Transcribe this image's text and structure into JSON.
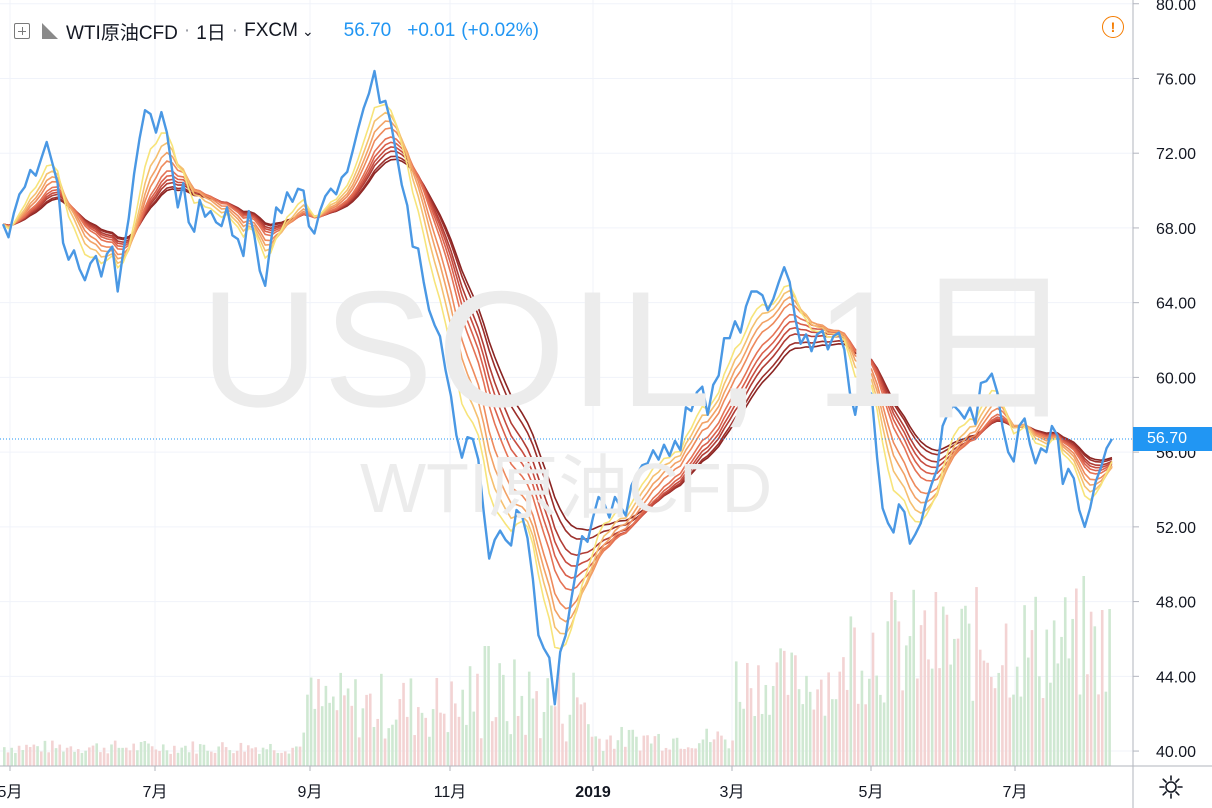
{
  "watermark": {
    "symbol": "USOIL, 1日",
    "description": "WTI原油CFD"
  },
  "legend": {
    "symbol": "WTI原油CFD",
    "interval": "1日",
    "exchange": "FXCM",
    "last": "56.70",
    "change": "+0.01",
    "change_pct": "(+0.02%)"
  },
  "price_label": "56.70",
  "icons": {
    "add": "plus-box-icon",
    "flag": "flag-icon",
    "alert": "alert-icon",
    "settings": "gear-icon"
  },
  "colors": {
    "price_line": "#4a98e4",
    "ribbon": [
      "#f7e47a",
      "#f5c070",
      "#f2a266",
      "#ee8a5c",
      "#e57355",
      "#d9604c",
      "#c84d40",
      "#b13d35",
      "#9c2f2b",
      "#8a2422"
    ],
    "volume_up": "#cfe8d2",
    "volume_down": "#f3d3d3"
  },
  "chart_data": {
    "type": "line",
    "title": "USOIL, 1日",
    "y_axis": {
      "range": [
        39.2,
        80.2
      ],
      "ticks": [
        "40.00",
        "44.00",
        "48.00",
        "52.00",
        "56.00",
        "60.00",
        "64.00",
        "68.00",
        "72.00",
        "76.00",
        "80.00"
      ],
      "position": "right"
    },
    "x_axis": {
      "ticks": [
        "5月",
        "7月",
        "9月",
        "11月",
        "2019",
        "3月",
        "5月",
        "7月"
      ],
      "range": [
        "2018-05",
        "2019-08"
      ]
    },
    "grid": true,
    "last_price": 56.7,
    "series": [
      {
        "type": "line",
        "values": [
          68.2,
          67.5,
          68.8,
          69.8,
          70.2,
          71.1,
          70.8,
          71.7,
          72.6,
          71.5,
          70.4,
          67.2,
          66.3,
          66.8,
          65.8,
          65.2,
          66.1,
          66.5,
          65.4,
          66.6,
          67.0,
          64.6,
          66.7,
          68.5,
          70.9,
          72.8,
          74.3,
          74.1,
          73.1,
          74.2,
          73.1,
          71.0,
          69.1,
          70.4,
          68.3,
          67.8,
          69.5,
          68.6,
          68.9,
          68.3,
          68.1,
          69.1,
          67.6,
          67.4,
          66.5,
          68.9,
          67.6,
          65.7,
          64.9,
          67.2,
          69.1,
          68.8,
          69.9,
          69.4,
          70.1,
          70.0,
          68.1,
          67.7,
          68.9,
          69.7,
          70.1,
          69.8,
          70.7,
          71.0,
          72.1,
          73.3,
          74.4,
          75.2,
          76.4,
          74.7,
          74.8,
          73.6,
          72.0,
          70.3,
          69.2,
          67.0,
          66.9,
          65.1,
          63.6,
          62.8,
          62.2,
          60.4,
          59.0,
          56.9,
          55.7,
          56.8,
          56.7,
          55.6,
          52.8,
          50.3,
          51.3,
          51.8,
          51.3,
          51.0,
          52.9,
          52.6,
          51.4,
          49.2,
          46.2,
          45.5,
          45.0,
          42.5,
          45.3,
          46.2,
          48.1,
          49.8,
          51.5,
          51.2,
          52.5,
          53.6,
          53.3,
          52.5,
          53.6,
          53.1,
          52.6,
          54.2,
          54.8,
          55.3,
          55.4,
          56.1,
          55.6,
          56.4,
          55.8,
          56.6,
          56.1,
          58.4,
          58.2,
          59.2,
          59.5,
          58.0,
          59.6,
          60.1,
          62.1,
          62.1,
          63.0,
          62.4,
          63.8,
          64.6,
          64.6,
          64.4,
          63.6,
          64.2,
          65.1,
          65.9,
          65.1,
          63.2,
          61.8,
          62.3,
          61.4,
          62.3,
          62.5,
          61.5,
          62.2,
          62.4,
          61.5,
          59.2,
          58.0,
          59.8,
          59.4,
          59.1,
          55.7,
          53.0,
          52.2,
          51.7,
          53.2,
          52.8,
          51.1,
          51.6,
          52.2,
          53.4,
          54.3,
          55.1,
          57.4,
          58.1,
          58.5,
          58.2,
          57.8,
          58.4,
          57.5,
          59.7,
          59.8,
          60.2,
          59.2,
          57.3,
          56.0,
          55.5,
          57.4,
          57.8,
          56.4,
          55.4,
          56.2,
          56.0,
          57.4,
          56.9,
          54.3,
          55.1,
          54.6,
          52.9,
          52.0,
          53.0,
          54.4,
          55.2,
          56.2,
          56.7
        ]
      },
      {
        "type": "ma_ribbon",
        "lines": 10,
        "periods": [
          10,
          15,
          20,
          25,
          30,
          35,
          40,
          45,
          50,
          55
        ]
      },
      {
        "type": "volume_bars",
        "description": "daily volume histogram along bottom"
      }
    ]
  }
}
